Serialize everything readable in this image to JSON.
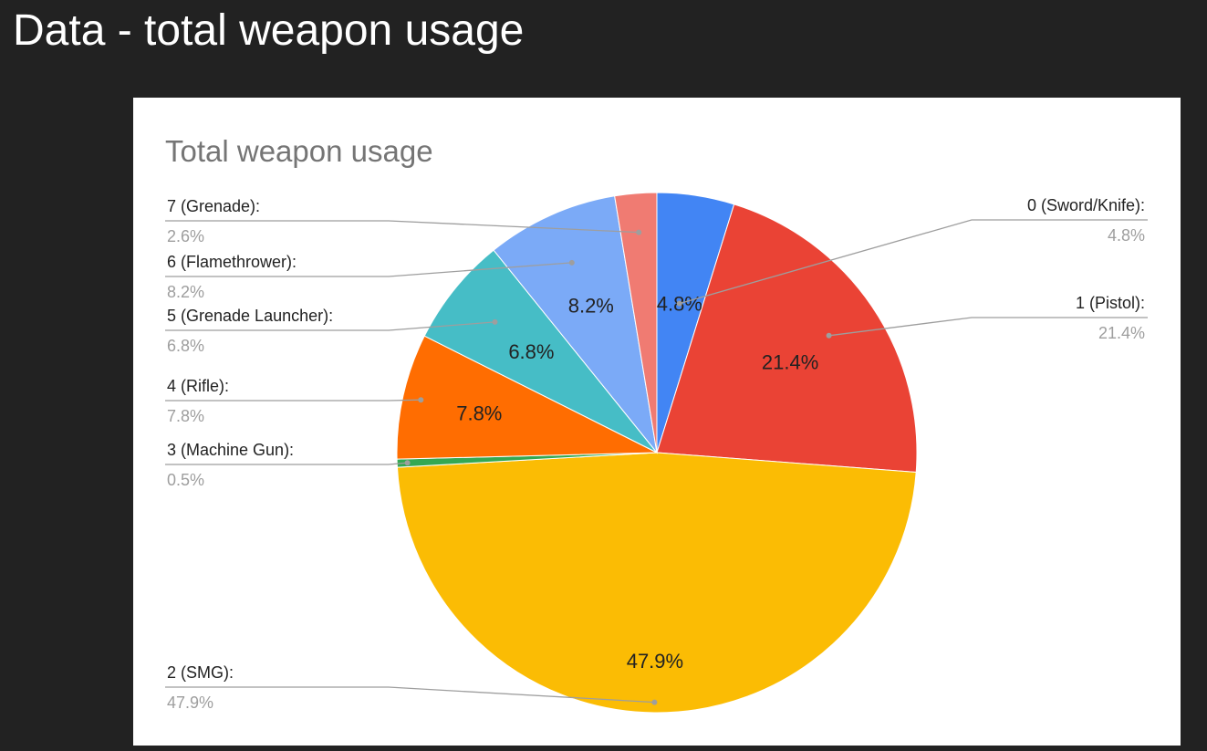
{
  "page": {
    "title": "Data - total weapon usage"
  },
  "chart_data": {
    "type": "pie",
    "title": "Total weapon usage",
    "slices": [
      {
        "label": "0 (Sword/Knife):",
        "value": 4.8,
        "value_label": "4.8%",
        "color": "#4285f4"
      },
      {
        "label": "1 (Pistol):",
        "value": 21.4,
        "value_label": "21.4%",
        "color": "#ea4335"
      },
      {
        "label": "2 (SMG):",
        "value": 47.9,
        "value_label": "47.9%",
        "color": "#fbbc04"
      },
      {
        "label": "3 (Machine Gun):",
        "value": 0.5,
        "value_label": "0.5%",
        "color": "#34a853"
      },
      {
        "label": "4 (Rifle):",
        "value": 7.8,
        "value_label": "7.8%",
        "color": "#ff6d01"
      },
      {
        "label": "5 (Grenade Launcher):",
        "value": 6.8,
        "value_label": "6.8%",
        "color": "#46bdc6"
      },
      {
        "label": "6 (Flamethrower):",
        "value": 8.2,
        "value_label": "8.2%",
        "color": "#7baaf7"
      },
      {
        "label": "7 (Grenade):",
        "value": 2.6,
        "value_label": "2.6%",
        "color": "#f07b72"
      }
    ]
  }
}
